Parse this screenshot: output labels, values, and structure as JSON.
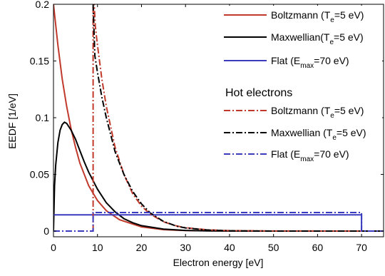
{
  "chart_data": {
    "type": "line",
    "xlabel": "Electron energy [eV]",
    "ylabel": "EEDF [1/eV]",
    "xlim": [
      0,
      75
    ],
    "ylim": [
      -0.005,
      0.2
    ],
    "x_ticks": [
      "0",
      "10",
      "20",
      "30",
      "40",
      "50",
      "60",
      "70"
    ],
    "y_ticks": [
      "0",
      "0.05",
      "0.1",
      "0.15",
      "0.2"
    ],
    "grid": false,
    "legend_position": "top-right",
    "legend_heading": "Hot electrons",
    "series": [
      {
        "name_parts": [
          "Boltzmann (T",
          "e",
          "=5 eV)"
        ],
        "group": "main",
        "color": "#c0392b",
        "dash": "solid",
        "x": [
          0,
          1,
          2,
          3,
          4,
          5,
          6,
          8,
          10,
          12,
          15,
          20,
          25,
          30,
          40,
          50,
          75
        ],
        "y": [
          0.2,
          0.164,
          0.134,
          0.11,
          0.09,
          0.074,
          0.06,
          0.04,
          0.027,
          0.018,
          0.01,
          0.0037,
          0.0013,
          0.0005,
          0.0001,
          0,
          0
        ]
      },
      {
        "name_parts": [
          "Maxwellian(T",
          "e",
          "=5 eV)"
        ],
        "group": "main",
        "color": "#000000",
        "dash": "solid",
        "x": [
          0,
          0.25,
          0.5,
          1,
          1.5,
          2,
          2.5,
          3,
          4,
          5,
          6,
          7,
          8,
          10,
          12,
          14,
          16,
          18,
          20,
          25,
          30,
          35,
          40,
          50,
          75
        ],
        "y": [
          0,
          0.04,
          0.058,
          0.078,
          0.089,
          0.094,
          0.096,
          0.095,
          0.089,
          0.081,
          0.071,
          0.061,
          0.052,
          0.037,
          0.025,
          0.017,
          0.011,
          0.0074,
          0.0048,
          0.0017,
          0.0006,
          0.0002,
          0.0001,
          0,
          0
        ]
      },
      {
        "name_parts": [
          "Flat (E",
          "max",
          "=70 eV)"
        ],
        "group": "main",
        "color": "#3b3bbf",
        "dash": "solid",
        "x": [
          0,
          70,
          70,
          75
        ],
        "y": [
          0.0143,
          0.0143,
          0,
          0
        ]
      },
      {
        "name_parts": [
          "Boltzmann (T",
          "e",
          "=5 eV)"
        ],
        "group": "hot",
        "color": "#c0392b",
        "dash": "dashdot",
        "x": [
          9,
          9,
          9.5,
          10,
          11,
          12,
          14,
          16,
          18,
          20,
          22,
          25,
          28,
          30,
          35,
          40,
          50,
          75
        ],
        "y": [
          0,
          0.22,
          0.181,
          0.164,
          0.134,
          0.11,
          0.074,
          0.05,
          0.033,
          0.022,
          0.015,
          0.0082,
          0.0045,
          0.003,
          0.0011,
          0.0004,
          0.0001,
          0
        ]
      },
      {
        "name_parts": [
          "Maxwellian (T",
          "e",
          "=5 eV)"
        ],
        "group": "hot",
        "color": "#000000",
        "dash": "dashdot",
        "x": [
          9,
          9.4,
          10,
          11,
          12,
          13,
          14,
          16,
          18,
          20,
          22,
          25,
          28,
          30,
          35,
          40,
          50,
          75
        ],
        "y": [
          0.2,
          0.155,
          0.14,
          0.118,
          0.1,
          0.085,
          0.07,
          0.05,
          0.035,
          0.024,
          0.016,
          0.0085,
          0.0043,
          0.0028,
          0.001,
          0.0003,
          0,
          0
        ]
      },
      {
        "name_parts": [
          "Flat (E",
          "max",
          "=70 eV)"
        ],
        "group": "hot",
        "color": "#3b3bbf",
        "dash": "dashdot",
        "x": [
          0,
          9,
          9,
          70,
          70,
          75
        ],
        "y": [
          0,
          0,
          0.0164,
          0.0164,
          0,
          0
        ]
      }
    ]
  }
}
